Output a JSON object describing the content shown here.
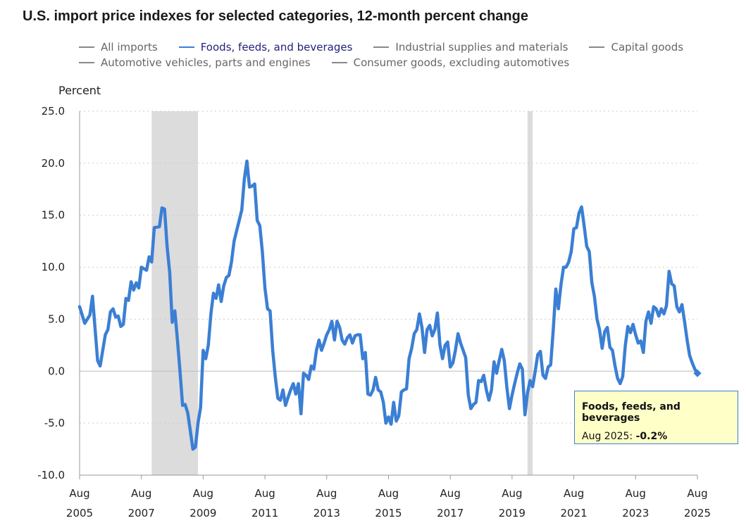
{
  "title": "U.S. import price indexes for selected categories, 12-month percent change",
  "legend": [
    {
      "label": "All imports",
      "active": false
    },
    {
      "label": "Foods, feeds, and beverages",
      "active": true
    },
    {
      "label": "Industrial supplies and materials",
      "active": false
    },
    {
      "label": "Capital goods",
      "active": false
    },
    {
      "label": "Automotive vehicles, parts and engines",
      "active": false
    },
    {
      "label": "Consumer goods, excluding automotives",
      "active": false
    }
  ],
  "tooltip": {
    "title": "Foods, feeds, and beverages",
    "date": "Aug 2025",
    "value": "-0.2%"
  },
  "colors": {
    "series": "#3b7fd4",
    "recession": "#dcdcdc",
    "grid": "#cccccc",
    "tooltip_bg": "#ffffc8"
  },
  "chart_data": {
    "type": "line",
    "title": "U.S. import price indexes for selected categories, 12-month percent change",
    "ylabel": "Percent",
    "xlabel": "",
    "ylim": [
      -10,
      25
    ],
    "yticks": [
      "25.0",
      "20.0",
      "15.0",
      "10.0",
      "5.0",
      "0.0",
      "-5.0",
      "-10.0"
    ],
    "ytick_values": [
      25,
      20,
      15,
      10,
      5,
      0,
      -5,
      -10
    ],
    "xlim": [
      "2005-08",
      "2025-08"
    ],
    "xticks": [
      {
        "month": "Aug",
        "year": "2005"
      },
      {
        "month": "Aug",
        "year": "2007"
      },
      {
        "month": "Aug",
        "year": "2009"
      },
      {
        "month": "Aug",
        "year": "2011"
      },
      {
        "month": "Aug",
        "year": "2013"
      },
      {
        "month": "Aug",
        "year": "2015"
      },
      {
        "month": "Aug",
        "year": "2017"
      },
      {
        "month": "Aug",
        "year": "2019"
      },
      {
        "month": "Aug",
        "year": "2021"
      },
      {
        "month": "Aug",
        "year": "2023"
      },
      {
        "month": "Aug",
        "year": "2025"
      }
    ],
    "grid": true,
    "recessions": [
      {
        "start": "2007-12",
        "end": "2009-06"
      },
      {
        "start": "2020-02",
        "end": "2020-04"
      }
    ],
    "series": [
      {
        "name": "Foods, feeds, and beverages",
        "points": [
          [
            "2005-08",
            6.2
          ],
          [
            "2005-10",
            4.6
          ],
          [
            "2005-12",
            5.4
          ],
          [
            "2006-01",
            7.2
          ],
          [
            "2006-03",
            1.0
          ],
          [
            "2006-04",
            0.5
          ],
          [
            "2006-06",
            3.5
          ],
          [
            "2006-07",
            4.0
          ],
          [
            "2006-08",
            5.7
          ],
          [
            "2006-09",
            6.0
          ],
          [
            "2006-10",
            5.2
          ],
          [
            "2006-11",
            5.3
          ],
          [
            "2006-12",
            4.3
          ],
          [
            "2007-01",
            4.5
          ],
          [
            "2007-02",
            7.0
          ],
          [
            "2007-03",
            6.8
          ],
          [
            "2007-04",
            8.6
          ],
          [
            "2007-05",
            7.8
          ],
          [
            "2007-06",
            8.5
          ],
          [
            "2007-07",
            8.0
          ],
          [
            "2007-08",
            10.0
          ],
          [
            "2007-10",
            9.7
          ],
          [
            "2007-11",
            11.0
          ],
          [
            "2007-12",
            10.5
          ],
          [
            "2008-01",
            13.8
          ],
          [
            "2008-03",
            13.9
          ],
          [
            "2008-04",
            15.7
          ],
          [
            "2008-05",
            15.6
          ],
          [
            "2008-06",
            12.0
          ],
          [
            "2008-07",
            9.5
          ],
          [
            "2008-08",
            4.7
          ],
          [
            "2008-09",
            5.8
          ],
          [
            "2008-10",
            3.0
          ],
          [
            "2008-11",
            0.0
          ],
          [
            "2008-12",
            -3.3
          ],
          [
            "2009-01",
            -3.2
          ],
          [
            "2009-02",
            -4.0
          ],
          [
            "2009-03",
            -5.7
          ],
          [
            "2009-04",
            -7.5
          ],
          [
            "2009-05",
            -7.3
          ],
          [
            "2009-06",
            -5.0
          ],
          [
            "2009-07",
            -3.5
          ],
          [
            "2009-08",
            2.0
          ],
          [
            "2009-09",
            1.2
          ],
          [
            "2009-10",
            2.5
          ],
          [
            "2009-11",
            5.5
          ],
          [
            "2009-12",
            7.5
          ],
          [
            "2010-01",
            7.0
          ],
          [
            "2010-02",
            8.3
          ],
          [
            "2010-03",
            6.7
          ],
          [
            "2010-04",
            8.2
          ],
          [
            "2010-05",
            9.0
          ],
          [
            "2010-06",
            9.2
          ],
          [
            "2010-07",
            10.5
          ],
          [
            "2010-08",
            12.5
          ],
          [
            "2010-09",
            13.5
          ],
          [
            "2010-10",
            14.5
          ],
          [
            "2010-11",
            15.5
          ],
          [
            "2010-12",
            18.5
          ],
          [
            "2011-01",
            20.2
          ],
          [
            "2011-02",
            17.7
          ],
          [
            "2011-03",
            17.8
          ],
          [
            "2011-04",
            18.0
          ],
          [
            "2011-05",
            14.5
          ],
          [
            "2011-06",
            14.0
          ],
          [
            "2011-07",
            11.5
          ],
          [
            "2011-08",
            8.0
          ],
          [
            "2011-09",
            6.0
          ],
          [
            "2011-10",
            5.8
          ],
          [
            "2011-11",
            2.0
          ],
          [
            "2011-12",
            -0.5
          ],
          [
            "2012-01",
            -2.6
          ],
          [
            "2012-02",
            -2.8
          ],
          [
            "2012-03",
            -1.8
          ],
          [
            "2012-04",
            -3.3
          ],
          [
            "2012-05",
            -2.5
          ],
          [
            "2012-06",
            -1.8
          ],
          [
            "2012-07",
            -1.2
          ],
          [
            "2012-08",
            -2.2
          ],
          [
            "2012-09",
            -1.2
          ],
          [
            "2012-10",
            -4.1
          ],
          [
            "2012-11",
            -0.2
          ],
          [
            "2012-12",
            -0.4
          ],
          [
            "2013-01",
            -0.8
          ],
          [
            "2013-02",
            0.5
          ],
          [
            "2013-03",
            0.2
          ],
          [
            "2013-04",
            2.0
          ],
          [
            "2013-05",
            3.0
          ],
          [
            "2013-06",
            2.0
          ],
          [
            "2013-07",
            2.7
          ],
          [
            "2013-08",
            3.5
          ],
          [
            "2013-09",
            4.0
          ],
          [
            "2013-10",
            4.8
          ],
          [
            "2013-11",
            3.0
          ],
          [
            "2013-12",
            4.8
          ],
          [
            "2014-01",
            4.2
          ],
          [
            "2014-02",
            3.0
          ],
          [
            "2014-03",
            2.6
          ],
          [
            "2014-04",
            3.2
          ],
          [
            "2014-05",
            3.5
          ],
          [
            "2014-06",
            2.7
          ],
          [
            "2014-07",
            3.4
          ],
          [
            "2014-08",
            3.5
          ],
          [
            "2014-09",
            3.5
          ],
          [
            "2014-10",
            1.2
          ],
          [
            "2014-11",
            1.8
          ],
          [
            "2014-12",
            -2.2
          ],
          [
            "2015-01",
            -2.3
          ],
          [
            "2015-02",
            -1.8
          ],
          [
            "2015-03",
            -0.6
          ],
          [
            "2015-04",
            -1.8
          ],
          [
            "2015-05",
            -2.0
          ],
          [
            "2015-06",
            -3.0
          ],
          [
            "2015-07",
            -5.0
          ],
          [
            "2015-08",
            -4.4
          ],
          [
            "2015-09",
            -5.1
          ],
          [
            "2015-10",
            -3.0
          ],
          [
            "2015-11",
            -4.8
          ],
          [
            "2015-12",
            -4.3
          ],
          [
            "2016-01",
            -2.0
          ],
          [
            "2016-02",
            -1.8
          ],
          [
            "2016-03",
            -1.7
          ],
          [
            "2016-04",
            1.2
          ],
          [
            "2016-05",
            2.2
          ],
          [
            "2016-06",
            3.6
          ],
          [
            "2016-07",
            4.0
          ],
          [
            "2016-08",
            5.5
          ],
          [
            "2016-09",
            4.2
          ],
          [
            "2016-10",
            1.8
          ],
          [
            "2016-11",
            4.0
          ],
          [
            "2016-12",
            4.4
          ],
          [
            "2017-01",
            3.4
          ],
          [
            "2017-02",
            4.0
          ],
          [
            "2017-03",
            5.6
          ],
          [
            "2017-04",
            2.5
          ],
          [
            "2017-05",
            1.2
          ],
          [
            "2017-06",
            2.5
          ],
          [
            "2017-07",
            2.8
          ],
          [
            "2017-08",
            0.4
          ],
          [
            "2017-09",
            0.8
          ],
          [
            "2017-10",
            2.0
          ],
          [
            "2017-11",
            3.6
          ],
          [
            "2017-12",
            2.7
          ],
          [
            "2018-01",
            2.0
          ],
          [
            "2018-02",
            1.3
          ],
          [
            "2018-03",
            -2.3
          ],
          [
            "2018-04",
            -3.6
          ],
          [
            "2018-05",
            -3.2
          ],
          [
            "2018-06",
            -3.0
          ],
          [
            "2018-07",
            -0.9
          ],
          [
            "2018-08",
            -1.0
          ],
          [
            "2018-09",
            -0.4
          ],
          [
            "2018-10",
            -1.8
          ],
          [
            "2018-11",
            -2.8
          ],
          [
            "2018-12",
            -1.8
          ],
          [
            "2019-01",
            0.9
          ],
          [
            "2019-02",
            -0.2
          ],
          [
            "2019-03",
            1.0
          ],
          [
            "2019-04",
            2.1
          ],
          [
            "2019-05",
            1.0
          ],
          [
            "2019-06",
            -1.6
          ],
          [
            "2019-07",
            -3.6
          ],
          [
            "2019-08",
            -2.3
          ],
          [
            "2019-09",
            -1.2
          ],
          [
            "2019-10",
            -0.2
          ],
          [
            "2019-11",
            0.7
          ],
          [
            "2019-12",
            0.2
          ],
          [
            "2020-01",
            -4.2
          ],
          [
            "2020-02",
            -2.1
          ],
          [
            "2020-03",
            -0.9
          ],
          [
            "2020-04",
            -1.5
          ],
          [
            "2020-05",
            0.0
          ],
          [
            "2020-06",
            1.6
          ],
          [
            "2020-07",
            1.9
          ],
          [
            "2020-08",
            -0.4
          ],
          [
            "2020-09",
            -0.7
          ],
          [
            "2020-10",
            0.4
          ],
          [
            "2020-11",
            0.6
          ],
          [
            "2020-12",
            4.0
          ],
          [
            "2021-01",
            7.9
          ],
          [
            "2021-02",
            6.0
          ],
          [
            "2021-03",
            8.3
          ],
          [
            "2021-04",
            10.0
          ],
          [
            "2021-05",
            10.0
          ],
          [
            "2021-06",
            10.5
          ],
          [
            "2021-07",
            11.5
          ],
          [
            "2021-08",
            13.7
          ],
          [
            "2021-09",
            13.8
          ],
          [
            "2021-10",
            15.2
          ],
          [
            "2021-11",
            15.8
          ],
          [
            "2021-12",
            14.0
          ],
          [
            "2022-01",
            12.0
          ],
          [
            "2022-02",
            11.5
          ],
          [
            "2022-03",
            8.5
          ],
          [
            "2022-04",
            7.2
          ],
          [
            "2022-05",
            5.0
          ],
          [
            "2022-06",
            4.0
          ],
          [
            "2022-07",
            2.2
          ],
          [
            "2022-08",
            3.8
          ],
          [
            "2022-09",
            4.2
          ],
          [
            "2022-10",
            2.3
          ],
          [
            "2022-11",
            2.0
          ],
          [
            "2022-12",
            0.5
          ],
          [
            "2023-01",
            -0.7
          ],
          [
            "2023-02",
            -1.2
          ],
          [
            "2023-03",
            -0.5
          ],
          [
            "2023-04",
            2.5
          ],
          [
            "2023-05",
            4.3
          ],
          [
            "2023-06",
            3.7
          ],
          [
            "2023-07",
            4.5
          ],
          [
            "2023-08",
            3.5
          ],
          [
            "2023-09",
            2.7
          ],
          [
            "2023-10",
            2.9
          ],
          [
            "2023-11",
            1.8
          ],
          [
            "2023-12",
            4.8
          ],
          [
            "2024-01",
            5.7
          ],
          [
            "2024-02",
            4.6
          ],
          [
            "2024-03",
            6.2
          ],
          [
            "2024-04",
            6.0
          ],
          [
            "2024-05",
            5.3
          ],
          [
            "2024-06",
            6.0
          ],
          [
            "2024-07",
            5.5
          ],
          [
            "2024-08",
            6.3
          ],
          [
            "2024-09",
            9.6
          ],
          [
            "2024-10",
            8.4
          ],
          [
            "2024-11",
            8.2
          ],
          [
            "2024-12",
            6.2
          ],
          [
            "2025-01",
            5.7
          ],
          [
            "2025-02",
            6.4
          ],
          [
            "2025-03",
            4.8
          ],
          [
            "2025-04",
            3.0
          ],
          [
            "2025-05",
            1.5
          ],
          [
            "2025-06",
            0.8
          ],
          [
            "2025-07",
            0.2
          ],
          [
            "2025-08",
            -0.2
          ]
        ]
      }
    ]
  }
}
